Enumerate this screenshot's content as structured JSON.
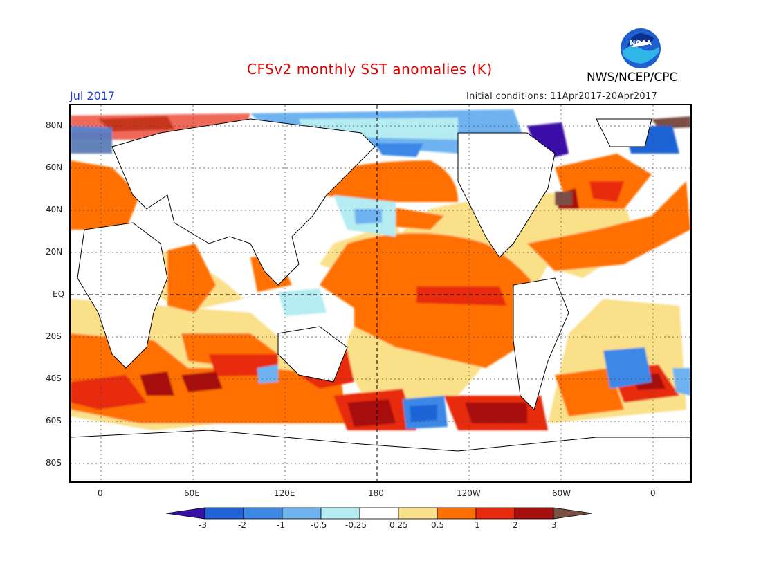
{
  "header": {
    "title": "CFSv2 monthly SST anomalies (K)",
    "org": "NWS/NCEP/CPC",
    "valid_month": "Jul 2017",
    "initial_conditions": "Initial conditions: 11Apr2017-20Apr2017",
    "logo_text": "NOAA"
  },
  "axes": {
    "lat_labels": [
      "80N",
      "60N",
      "40N",
      "20N",
      "EQ",
      "20S",
      "40S",
      "60S",
      "80S"
    ],
    "lon_labels": [
      "0",
      "60E",
      "120E",
      "180",
      "120W",
      "60W",
      "0"
    ]
  },
  "colorbar": {
    "labels": [
      "-3",
      "-2",
      "-1",
      "-0.5",
      "-0.25",
      "0.25",
      "0.5",
      "1",
      "2",
      "3"
    ],
    "colors": [
      "#3a11a8",
      "#1f63d6",
      "#3b88e6",
      "#6eb3f0",
      "#b5ecf2",
      "#ffffff",
      "#fbe08a",
      "#ff6f00",
      "#e82a0c",
      "#a70f0f",
      "#7a5045"
    ]
  },
  "colors": {
    "title": "#e00000",
    "valid_month": "#1a3adf",
    "land": "#ffffff",
    "coast": "#000000"
  }
}
